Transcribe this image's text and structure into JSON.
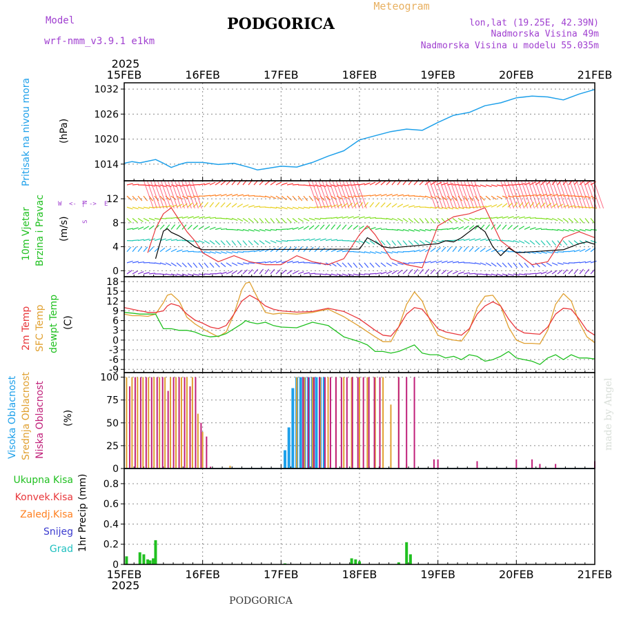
{
  "header": {
    "model_label": "Model",
    "model_name": "wrf-nmm_v3.9.1 e1km",
    "title": "PODGORICA",
    "subtitle": "Meteogram",
    "location_line": "lon,lat (19.25E, 42.39N)",
    "elevation_line": "Nadmorska Visina 49m",
    "model_elevation_line": "Nadmorska Visina u modelu 55.035m",
    "footer_title": "PODGORICA",
    "credit": "made by Angel"
  },
  "time_axis": {
    "year": "2025",
    "labels": [
      "15FEB",
      "16FEB",
      "17FEB",
      "18FEB",
      "19FEB",
      "20FEB",
      "21FEB"
    ]
  },
  "colors": {
    "pressure": "#1ea0ea",
    "temp2m": "#e8363a",
    "sfc_temp": "#e0a030",
    "dewpt": "#20c020",
    "wind_black": "#000000",
    "wind_gust": "#e8363a",
    "high_cloud": "#1ea0ea",
    "mid_cloud": "#e0a030",
    "low_cloud": "#c0207a",
    "total_precip": "#20c020",
    "conv_precip": "#e8363a",
    "frozen_precip": "#ff8020",
    "snow": "#3a3acf",
    "hail": "#20c0c0",
    "label_purple": "#a040d0",
    "label_orange": "#e8b060"
  },
  "chart_data": [
    {
      "type": "line",
      "panel": "pressure",
      "ylabel_lines": [
        "Pritisak na nivou mora",
        "(hPa)"
      ],
      "yticks": [
        "1014",
        "1020",
        "1026",
        "1032"
      ],
      "ylim": [
        1010,
        1033.5
      ],
      "x_unit": "days since 15FEB 00UTC",
      "series": [
        {
          "name": "pressure",
          "x": [
            0,
            0.1,
            0.2,
            0.3,
            0.4,
            0.5,
            0.6,
            0.7,
            0.8,
            1.0,
            1.2,
            1.4,
            1.6,
            1.7,
            1.8,
            2.0,
            2.2,
            2.4,
            2.6,
            2.8,
            3.0,
            3.2,
            3.4,
            3.6,
            3.8,
            4.0,
            4.2,
            4.4,
            4.6,
            4.8,
            5.0,
            5.2,
            5.4,
            5.6,
            5.8,
            6.0
          ],
          "y": [
            1014.2,
            1014.6,
            1014.3,
            1014.7,
            1015.1,
            1014.2,
            1013.2,
            1013.9,
            1014.4,
            1014.4,
            1013.9,
            1014.2,
            1013.2,
            1012.6,
            1012.9,
            1013.5,
            1013.3,
            1014.4,
            1015.9,
            1017.2,
            1019.8,
            1020.8,
            1021.8,
            1022.4,
            1022.1,
            1024.0,
            1025.7,
            1026.4,
            1028.0,
            1028.7,
            1029.9,
            1030.3,
            1030.1,
            1029.4,
            1030.8,
            1031.9
          ]
        }
      ]
    },
    {
      "type": "line",
      "panel": "wind",
      "ylabel_lines": [
        "10m Vjetar",
        "Brzina i Pravac",
        "(m/s)"
      ],
      "compass": [
        "N",
        "S",
        "W",
        "E",
        "<-",
        "->",
        "|"
      ],
      "yticks": [
        "0",
        "4",
        "8",
        "12"
      ],
      "ylim": [
        -1,
        15
      ],
      "series": [
        {
          "name": "wind speed",
          "x": [
            0.4,
            0.5,
            0.55,
            0.6,
            0.7,
            0.8,
            0.9,
            1.0,
            3.0,
            3.05,
            3.1,
            3.2,
            3.3,
            3.4,
            4.0,
            4.1,
            4.2,
            4.3,
            4.4,
            4.5,
            4.6,
            4.7,
            4.8,
            4.9,
            5.0,
            5.6,
            5.7,
            5.8,
            5.9,
            6.0
          ],
          "y": [
            2.0,
            6.6,
            7.0,
            6.4,
            5.8,
            5.0,
            4.0,
            3.5,
            3.6,
            4.5,
            5.5,
            4.8,
            4.0,
            3.8,
            4.5,
            5.0,
            4.8,
            5.5,
            6.5,
            7.5,
            6.5,
            4.0,
            2.5,
            3.8,
            3.0,
            3.5,
            4.0,
            4.5,
            4.8,
            4.4
          ]
        },
        {
          "name": "gust",
          "x": [
            0.3,
            0.4,
            0.5,
            0.6,
            0.7,
            0.8,
            0.9,
            1.0,
            1.2,
            1.4,
            1.6,
            1.8,
            2.0,
            2.2,
            2.4,
            2.6,
            2.8,
            3.0,
            3.1,
            3.2,
            3.3,
            3.4,
            3.6,
            3.8,
            4.0,
            4.2,
            4.4,
            4.6,
            4.8,
            5.0,
            5.2,
            5.4,
            5.6,
            5.8,
            6.0
          ],
          "y": [
            3,
            7,
            9.5,
            10.5,
            8.5,
            6.5,
            5,
            3,
            1.5,
            2.5,
            1.5,
            1,
            1,
            2.5,
            1.5,
            1,
            2,
            6,
            7.5,
            6,
            4,
            2,
            1,
            0.5,
            7.5,
            9,
            9.5,
            10.5,
            5,
            3,
            1,
            1.5,
            5.5,
            6.5,
            5.5
          ]
        }
      ]
    },
    {
      "type": "line",
      "panel": "temperature",
      "ylabel_lines": [
        "2m Temp",
        "SFC Temp",
        "dewpt Temp",
        "(C)"
      ],
      "yticks": [
        "18",
        "15",
        "12",
        "9",
        "6",
        "3",
        "0",
        "-3",
        "-6",
        "-9"
      ],
      "ylim": [
        -10,
        19.5
      ],
      "series": [
        {
          "name": "2m Temp",
          "x": [
            0,
            0.1,
            0.2,
            0.25,
            0.3,
            0.4,
            0.5,
            0.55,
            0.6,
            0.7,
            0.8,
            0.9,
            1.0,
            1.1,
            1.2,
            1.3,
            1.4,
            1.5,
            1.6,
            1.7,
            1.8,
            1.9,
            2.0,
            2.2,
            2.4,
            2.6,
            2.8,
            3.0,
            3.2,
            3.3,
            3.4,
            3.5,
            3.6,
            3.7,
            3.8,
            3.9,
            4.0,
            4.1,
            4.2,
            4.3,
            4.4,
            4.5,
            4.6,
            4.7,
            4.8,
            4.9,
            5.0,
            5.1,
            5.2,
            5.3,
            5.4,
            5.5,
            5.6,
            5.7,
            5.8,
            5.9,
            6.0
          ],
          "y": [
            10,
            9.5,
            9.0,
            8.8,
            8.5,
            8.5,
            9.0,
            10.5,
            11.2,
            10.5,
            8.0,
            6.2,
            5.2,
            4.0,
            3.5,
            4.5,
            8.0,
            12.0,
            13.8,
            12.5,
            10.5,
            9.5,
            9.0,
            8.6,
            8.8,
            9.8,
            8.8,
            6.5,
            3.0,
            1.5,
            1.2,
            4.0,
            8.0,
            10.0,
            9.5,
            6.5,
            3.5,
            2.5,
            2.0,
            1.5,
            3.5,
            8.0,
            10.5,
            11.8,
            10.5,
            6.5,
            3.5,
            2.2,
            2.0,
            1.8,
            4.0,
            8.0,
            9.8,
            9.5,
            6.5,
            3.0,
            1.5
          ]
        },
        {
          "name": "SFC Temp",
          "x": [
            0,
            0.1,
            0.2,
            0.3,
            0.4,
            0.5,
            0.55,
            0.6,
            0.7,
            0.8,
            0.9,
            1.0,
            1.1,
            1.2,
            1.3,
            1.4,
            1.5,
            1.55,
            1.6,
            1.7,
            1.8,
            1.9,
            2.0,
            2.2,
            2.4,
            2.6,
            2.8,
            3.0,
            3.2,
            3.3,
            3.4,
            3.5,
            3.6,
            3.7,
            3.8,
            3.9,
            4.0,
            4.1,
            4.2,
            4.3,
            4.4,
            4.5,
            4.6,
            4.7,
            4.8,
            4.9,
            5.0,
            5.1,
            5.2,
            5.3,
            5.4,
            5.5,
            5.6,
            5.7,
            5.8,
            5.9,
            6.0
          ],
          "y": [
            8.0,
            7.5,
            7.5,
            7.3,
            8.0,
            11.5,
            13.8,
            14.2,
            12.0,
            7.0,
            5.0,
            3.5,
            2.2,
            1.0,
            2.5,
            8.0,
            15.5,
            17.5,
            17.8,
            13.0,
            8.5,
            8.0,
            8.3,
            8.0,
            8.5,
            9.5,
            7.2,
            4.2,
            1.0,
            -0.5,
            -0.5,
            4.0,
            11.0,
            14.8,
            12.0,
            6.0,
            1.5,
            0.5,
            0,
            -0.3,
            3.0,
            10.0,
            13.5,
            13.8,
            10.5,
            4.0,
            0,
            -1.0,
            -1.0,
            -1.2,
            3.0,
            11.0,
            14.3,
            12.0,
            5.5,
            1.0,
            -0.8
          ]
        },
        {
          "name": "dewpt Temp",
          "x": [
            0,
            0.1,
            0.2,
            0.3,
            0.4,
            0.5,
            0.6,
            0.7,
            0.8,
            0.9,
            1.0,
            1.1,
            1.2,
            1.3,
            1.4,
            1.5,
            1.55,
            1.6,
            1.7,
            1.8,
            1.9,
            2.0,
            2.2,
            2.4,
            2.6,
            2.8,
            3.0,
            3.1,
            3.2,
            3.3,
            3.4,
            3.5,
            3.6,
            3.7,
            3.8,
            3.9,
            4.0,
            4.1,
            4.2,
            4.3,
            4.4,
            4.5,
            4.6,
            4.7,
            4.8,
            4.9,
            5.0,
            5.1,
            5.2,
            5.3,
            5.4,
            5.5,
            5.6,
            5.7,
            5.8,
            5.9,
            6.0
          ],
          "y": [
            8.5,
            8.3,
            8.0,
            8.0,
            8.0,
            3.5,
            3.5,
            3.0,
            3.0,
            2.5,
            1.5,
            1.0,
            1.2,
            2.0,
            3.5,
            5.0,
            6.0,
            5.5,
            5.0,
            5.5,
            4.5,
            4.0,
            3.8,
            5.5,
            4.5,
            1.0,
            -0.5,
            -1.5,
            -3.5,
            -3.5,
            -4.0,
            -3.5,
            -2.5,
            -1.5,
            -4.0,
            -4.5,
            -4.5,
            -5.5,
            -5.0,
            -6.0,
            -4.5,
            -5.0,
            -6.5,
            -6.0,
            -5.0,
            -3.5,
            -5.5,
            -6.0,
            -6.5,
            -7.5,
            -5.5,
            -4.5,
            -6.0,
            -4.5,
            -5.5,
            -5.5,
            -5.8
          ]
        }
      ]
    },
    {
      "type": "bar",
      "panel": "clouds",
      "ylabel_lines": [
        "Visoka Oblacnost",
        "Srednja Oblacnost",
        "Niska Oblacnost",
        "(%)"
      ],
      "yticks": [
        "0",
        "25",
        "50",
        "75",
        "100"
      ],
      "ylim": [
        0,
        105
      ],
      "series": [
        {
          "name": "Visoka Oblacnost",
          "x": [
            2.05,
            2.1,
            2.15,
            2.2,
            2.25,
            2.3,
            2.35,
            2.4,
            2.45,
            2.5,
            2.55
          ],
          "values": [
            20,
            45,
            88,
            100,
            100,
            100,
            100,
            100,
            100,
            100,
            100
          ]
        },
        {
          "name": "Srednja Oblacnost",
          "x": [
            0.03,
            0.1,
            0.17,
            0.24,
            0.31,
            0.38,
            0.45,
            0.52,
            0.59,
            0.66,
            0.73,
            0.8,
            0.87,
            0.94,
            1.0,
            1.35,
            2.2,
            2.3,
            2.4,
            2.5,
            2.6,
            2.7,
            2.8,
            2.9,
            3.0,
            3.1,
            3.2,
            3.3,
            3.4,
            3.5,
            3.6
          ],
          "values": [
            100,
            100,
            100,
            100,
            100,
            100,
            100,
            100,
            100,
            100,
            100,
            100,
            100,
            60,
            40,
            3,
            100,
            100,
            100,
            100,
            100,
            100,
            100,
            100,
            100,
            100,
            100,
            100,
            70,
            100,
            5
          ]
        },
        {
          "name": "Niska Oblacnost",
          "x": [
            0.07,
            0.14,
            0.21,
            0.28,
            0.35,
            0.42,
            0.49,
            0.56,
            0.63,
            0.7,
            0.77,
            0.84,
            0.91,
            0.98,
            1.05,
            1.1,
            2.28,
            2.35,
            2.42,
            2.49,
            2.56,
            2.63,
            2.7,
            2.77,
            2.84,
            2.91,
            2.98,
            3.05,
            3.12,
            3.19,
            3.26,
            3.5,
            3.6,
            3.7,
            3.95,
            4.0,
            4.5,
            5.0,
            5.2,
            5.3,
            5.5,
            6.0
          ],
          "values": [
            90,
            100,
            100,
            100,
            100,
            100,
            100,
            85,
            100,
            100,
            100,
            90,
            100,
            50,
            35,
            2,
            100,
            100,
            100,
            100,
            100,
            100,
            100,
            100,
            100,
            100,
            100,
            100,
            100,
            100,
            100,
            100,
            100,
            100,
            10,
            10,
            8,
            10,
            10,
            5,
            5,
            8
          ]
        }
      ]
    },
    {
      "type": "bar",
      "panel": "precip",
      "ylabel_lines": [
        "1hr Precip (mm)"
      ],
      "legend": [
        "Ukupna Kisa",
        "Konvek.Kisa",
        "Zaledj.Kisa",
        "Snijeg",
        "Grad"
      ],
      "yticks": [
        "0",
        "0.2",
        "0.4",
        "0.6",
        "0.8"
      ],
      "ylim": [
        0,
        0.95
      ],
      "series": [
        {
          "name": "Ukupna Kisa",
          "x": [
            0.03,
            0.2,
            0.25,
            0.3,
            0.33,
            0.37,
            0.4,
            2.05,
            2.9,
            2.95,
            3.0,
            3.5,
            3.6,
            3.65
          ],
          "values": [
            0.08,
            0.12,
            0.1,
            0.05,
            0.04,
            0.06,
            0.24,
            0.01,
            0.06,
            0.05,
            0.03,
            0.02,
            0.22,
            0.1
          ]
        }
      ]
    }
  ]
}
